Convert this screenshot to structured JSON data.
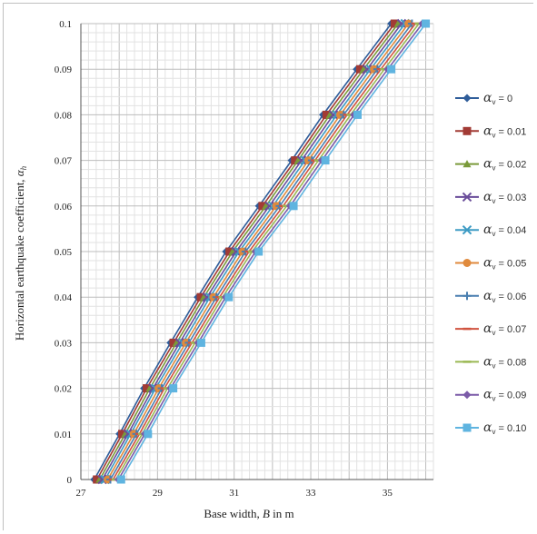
{
  "chart_data": {
    "type": "line",
    "xlabel_prefix": "Base width, ",
    "xlabel_var": "B",
    "xlabel_suffix": " in m",
    "ylabel_prefix": "Horizontal earthquake coefficient, ",
    "ylabel_var": "α",
    "ylabel_sub": "h",
    "xlim": [
      27,
      36.2
    ],
    "ylim": [
      0,
      0.1
    ],
    "x_ticks": [
      "27",
      "29",
      "31",
      "33",
      "35"
    ],
    "y_ticks": [
      "0",
      "0.01",
      "0.02",
      "0.03",
      "0.04",
      "0.05",
      "0.06",
      "0.07",
      "0.08",
      "0.09",
      "0.1"
    ],
    "grid": true,
    "legend_position": "right",
    "y": [
      0,
      0.01,
      0.02,
      0.03,
      0.04,
      0.05,
      0.06,
      0.07,
      0.08,
      0.09,
      0.1
    ],
    "series": [
      {
        "name": "αv = 0",
        "alpha": "α",
        "sub": "v",
        "rest": " = 0",
        "color": "#2f5d9a",
        "marker": "diamond",
        "x": [
          27.35,
          28.01,
          28.65,
          29.34,
          30.05,
          30.79,
          31.65,
          32.5,
          33.32,
          34.2,
          35.1
        ]
      },
      {
        "name": "αv = 0.01",
        "alpha": "α",
        "sub": "v",
        "rest": " = 0.01",
        "color": "#a23b35",
        "marker": "square",
        "x": [
          27.42,
          28.08,
          28.72,
          29.42,
          30.13,
          30.88,
          31.74,
          32.59,
          33.41,
          34.29,
          35.19
        ]
      },
      {
        "name": "αv = 0.02",
        "alpha": "α",
        "sub": "v",
        "rest": " = 0.02",
        "color": "#7a9a3a",
        "marker": "triangle",
        "x": [
          27.49,
          28.16,
          28.8,
          29.5,
          30.21,
          30.96,
          31.83,
          32.67,
          33.5,
          34.38,
          35.28
        ]
      },
      {
        "name": "αv = 0.03",
        "alpha": "α",
        "sub": "v",
        "rest": " = 0.03",
        "color": "#6a4d9a",
        "marker": "x",
        "x": [
          27.56,
          28.23,
          28.88,
          29.58,
          30.29,
          31.05,
          31.92,
          32.76,
          33.59,
          34.47,
          35.37
        ]
      },
      {
        "name": "αv = 0.04",
        "alpha": "α",
        "sub": "v",
        "rest": " = 0.04",
        "color": "#3d9bc4",
        "marker": "x",
        "x": [
          27.63,
          28.3,
          28.95,
          29.66,
          30.37,
          31.13,
          32.01,
          32.85,
          33.68,
          34.56,
          35.46
        ]
      },
      {
        "name": "αv = 0.05",
        "alpha": "α",
        "sub": "v",
        "rest": " = 0.05",
        "color": "#e08a3c",
        "marker": "circle",
        "x": [
          27.7,
          28.38,
          29.03,
          29.74,
          30.46,
          31.22,
          32.1,
          32.94,
          33.77,
          34.65,
          35.55
        ]
      },
      {
        "name": "αv = 0.06",
        "alpha": "α",
        "sub": "v",
        "rest": " = 0.06",
        "color": "#4a7fb0",
        "marker": "plus",
        "x": [
          27.77,
          28.45,
          29.11,
          29.82,
          30.54,
          31.3,
          32.19,
          33.03,
          33.86,
          34.74,
          35.64
        ]
      },
      {
        "name": "αv = 0.07",
        "alpha": "α",
        "sub": "v",
        "rest": " = 0.07",
        "color": "#d0533f",
        "marker": "dash",
        "x": [
          27.84,
          28.53,
          29.18,
          29.9,
          30.62,
          31.39,
          32.28,
          33.11,
          33.95,
          34.83,
          35.73
        ]
      },
      {
        "name": "αv = 0.08",
        "alpha": "α",
        "sub": "v",
        "rest": " = 0.08",
        "color": "#9ab853",
        "marker": "dash",
        "x": [
          27.91,
          28.6,
          29.26,
          29.98,
          30.7,
          31.47,
          32.37,
          33.2,
          34.04,
          34.92,
          35.82
        ]
      },
      {
        "name": "αv = 0.09",
        "alpha": "α",
        "sub": "v",
        "rest": " = 0.09",
        "color": "#7b5ba8",
        "marker": "diamond",
        "x": [
          27.98,
          28.67,
          29.34,
          30.06,
          30.78,
          31.56,
          32.46,
          33.29,
          34.13,
          35.01,
          35.91
        ]
      },
      {
        "name": "αv = 0.10",
        "alpha": "α",
        "sub": "v",
        "rest": " = 0.10",
        "color": "#5fb4e0",
        "marker": "square",
        "x": [
          28.05,
          28.75,
          29.41,
          30.14,
          30.86,
          31.64,
          32.55,
          33.38,
          34.22,
          35.1,
          36.0
        ]
      }
    ]
  }
}
